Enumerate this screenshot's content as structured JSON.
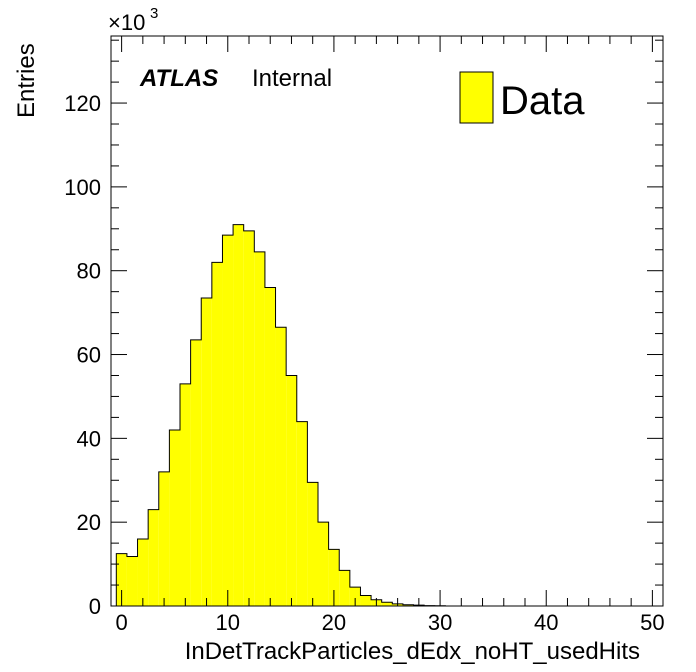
{
  "chart_data": {
    "type": "bar",
    "xlabel": "InDetTrackParticles_dEdx_noHT_usedHits",
    "ylabel": "Entries",
    "y_multiplier": "×10",
    "y_multiplier_exp": "3",
    "xlim": [
      -1,
      51
    ],
    "ylim": [
      0,
      136
    ],
    "xticks": [
      0,
      10,
      20,
      30,
      40,
      50
    ],
    "yticks": [
      0,
      20,
      40,
      60,
      80,
      100,
      120
    ],
    "bin_width": 1,
    "bin_start": -0.5,
    "values": [
      12.5,
      11.8,
      16,
      23,
      32,
      42,
      53,
      63.5,
      73.5,
      82,
      88.5,
      91,
      89.5,
      84.5,
      76,
      66.5,
      55,
      44,
      29.5,
      20,
      13.5,
      8.5,
      4.5,
      2.5,
      1.5,
      0.9,
      0.5,
      0.3,
      0.2,
      0.1,
      0.05
    ],
    "series": [
      {
        "name": "Data",
        "color": "#ffff00"
      }
    ],
    "legend_position": "top-right",
    "annotation_bold": "ATLAS",
    "annotation_text": "Internal",
    "colors": {
      "fill": "#ffff00",
      "line": "#000000"
    }
  }
}
